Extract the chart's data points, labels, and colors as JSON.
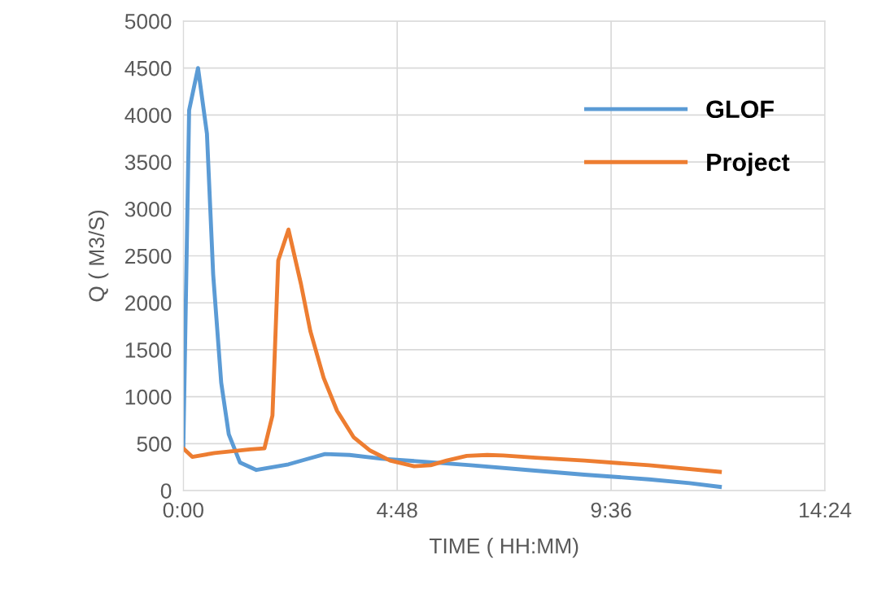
{
  "chart_data": {
    "type": "line",
    "xlabel": "TIME ( HH:MM)",
    "ylabel": "Q ( M3/S)",
    "xlim": [
      0,
      14.4
    ],
    "xticks": [
      {
        "value": 0,
        "label": "0:00"
      },
      {
        "value": 4.8,
        "label": "4:48"
      },
      {
        "value": 9.6,
        "label": "9:36"
      },
      {
        "value": 14.4,
        "label": "14:24"
      }
    ],
    "ylim": [
      0,
      5000
    ],
    "yticks": [
      0,
      500,
      1000,
      1500,
      2000,
      2500,
      3000,
      3500,
      4000,
      4500,
      5000
    ],
    "grid": true,
    "legend": "top right",
    "marker": "none",
    "line_style": "solid",
    "series": [
      {
        "name": "GLOF",
        "color": "#5b9bd5",
        "x": [
          0,
          0.13,
          0.33,
          0.53,
          0.67,
          0.85,
          1.02,
          1.27,
          1.64,
          2.36,
          2.73,
          3.18,
          3.73,
          4.45,
          5.35,
          6.45,
          7.73,
          9.0,
          10.45,
          11.36,
          12.04
        ],
        "values": [
          450,
          4050,
          4500,
          3800,
          2300,
          1150,
          600,
          300,
          220,
          280,
          330,
          390,
          380,
          340,
          310,
          270,
          220,
          170,
          120,
          80,
          40
        ]
      },
      {
        "name": "Project",
        "color": "#ed7d31",
        "x": [
          0,
          0.2,
          0.7,
          1.5,
          1.82,
          2.0,
          2.13,
          2.36,
          2.64,
          2.85,
          3.15,
          3.45,
          3.82,
          4.18,
          4.64,
          5.18,
          5.55,
          5.91,
          6.36,
          6.82,
          7.18,
          7.91,
          9.0,
          10.45,
          12.04
        ],
        "values": [
          450,
          360,
          400,
          440,
          450,
          800,
          2450,
          2780,
          2200,
          1700,
          1200,
          850,
          570,
          430,
          320,
          260,
          270,
          320,
          370,
          380,
          375,
          350,
          320,
          270,
          200
        ]
      }
    ]
  }
}
